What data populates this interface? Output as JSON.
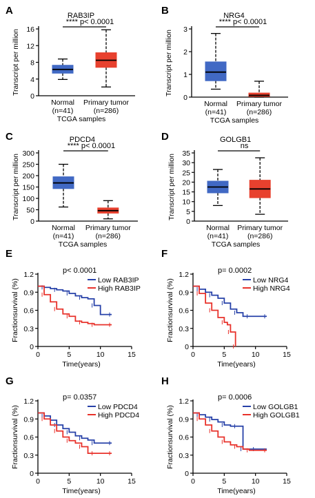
{
  "colors": {
    "normal": "#4169c4",
    "tumor": "#e8412e",
    "low": "#2640a8",
    "high": "#e8312a",
    "axis": "#000000"
  },
  "chart_data": [
    {
      "panel": "A",
      "type": "box",
      "title": "RAB3IP",
      "ylabel": "Transcript per million",
      "xlabel": "TCGA samples",
      "ylim": [
        0,
        16
      ],
      "yticks": [
        0,
        4,
        8,
        12,
        16
      ],
      "categories": [
        "Normal\n(n=41)",
        "Primary tumor\n(n=286)"
      ],
      "boxes": [
        {
          "name": "Normal",
          "n_label": "(n=41)",
          "min": 3.9,
          "q1": 5.4,
          "median": 6.3,
          "q3": 7.3,
          "max": 8.8
        },
        {
          "name": "Primary tumor",
          "n_label": "(n=286)",
          "min": 2.1,
          "q1": 6.8,
          "median": 8.5,
          "q3": 10.3,
          "max": 15.8
        }
      ],
      "annotation": "**** p< 0.0001"
    },
    {
      "panel": "B",
      "type": "box",
      "title": "NRG4",
      "ylabel": "Transcript per million",
      "xlabel": "TCGA samples",
      "ylim": [
        0,
        3
      ],
      "yticks": [
        0,
        1,
        2,
        3
      ],
      "boxes": [
        {
          "name": "Normal",
          "n_label": "(n=41)",
          "min": 0.35,
          "q1": 0.72,
          "median": 1.1,
          "q3": 1.55,
          "max": 2.8
        },
        {
          "name": "Primary tumor",
          "n_label": "(n=286)",
          "min": 0.0,
          "q1": 0.03,
          "median": 0.08,
          "q3": 0.18,
          "max": 0.7
        }
      ],
      "annotation": "**** p< 0.0001"
    },
    {
      "panel": "C",
      "type": "box",
      "title": "PDCD4",
      "ylabel": "Transcript per million",
      "xlabel": "TCGA samples",
      "ylim": [
        0,
        300
      ],
      "yticks": [
        0,
        50,
        100,
        150,
        200,
        250,
        300
      ],
      "boxes": [
        {
          "name": "Normal",
          "n_label": "(n=41)",
          "min": 62,
          "q1": 143,
          "median": 168,
          "q3": 195,
          "max": 250
        },
        {
          "name": "Primary tumor",
          "n_label": "(n=286)",
          "min": 10,
          "q1": 35,
          "median": 46,
          "q3": 58,
          "max": 90
        }
      ],
      "annotation": "**** p< 0.0001"
    },
    {
      "panel": "D",
      "type": "box",
      "title": "GOLGB1",
      "ylabel": "Transcript per million",
      "xlabel": "TCGA samples",
      "ylim": [
        0,
        35
      ],
      "yticks": [
        0,
        5,
        10,
        15,
        20,
        25,
        30,
        35
      ],
      "boxes": [
        {
          "name": "Normal",
          "n_label": "(n=41)",
          "min": 8,
          "q1": 14.5,
          "median": 17.5,
          "q3": 20.5,
          "max": 26.5
        },
        {
          "name": "Primary tumor",
          "n_label": "(n=286)",
          "min": 3.5,
          "q1": 12,
          "median": 16.5,
          "q3": 21,
          "max": 32.5
        }
      ],
      "annotation": "ns"
    },
    {
      "panel": "E",
      "type": "line",
      "subtype": "kaplan-meier",
      "ylabel": "Fractionsurvival (%)",
      "xlabel": "Time(years)",
      "xlim": [
        0,
        15
      ],
      "ylim": [
        0,
        1.2
      ],
      "xticks": [
        0,
        5,
        10,
        15
      ],
      "yticks": [
        0,
        0.3,
        0.6,
        0.9,
        1.2
      ],
      "pvalue": "p< 0.0001",
      "legend_position": "top-right",
      "series": [
        {
          "name": "Low RAB3IP",
          "x": [
            0,
            1,
            2,
            3,
            4,
            5,
            6,
            7,
            8,
            9,
            10,
            11.8
          ],
          "y": [
            1.0,
            0.98,
            0.96,
            0.94,
            0.92,
            0.88,
            0.84,
            0.81,
            0.79,
            0.68,
            0.53,
            0.53
          ]
        },
        {
          "name": "High RAB3IP",
          "x": [
            0,
            1,
            2,
            3,
            4,
            5,
            6,
            7,
            8,
            9,
            10,
            11.8
          ],
          "y": [
            1.0,
            0.86,
            0.74,
            0.62,
            0.54,
            0.5,
            0.42,
            0.4,
            0.38,
            0.36,
            0.36,
            0.36
          ]
        }
      ]
    },
    {
      "panel": "F",
      "type": "line",
      "subtype": "kaplan-meier",
      "ylabel": "Fractionsurvival (%)",
      "xlabel": "Time(years)",
      "xlim": [
        0,
        15
      ],
      "ylim": [
        0,
        1.2
      ],
      "xticks": [
        0,
        5,
        10,
        15
      ],
      "yticks": [
        0,
        0.3,
        0.6,
        0.9,
        1.2
      ],
      "pvalue": "p= 0.0002",
      "legend_position": "top-right",
      "series": [
        {
          "name": "Low NRG4",
          "x": [
            0,
            1,
            2,
            3,
            4,
            5,
            6,
            7,
            8,
            9,
            10,
            11.8
          ],
          "y": [
            1.0,
            0.95,
            0.9,
            0.85,
            0.8,
            0.72,
            0.62,
            0.56,
            0.5,
            0.5,
            0.5,
            0.5
          ]
        },
        {
          "name": "High NRG4",
          "x": [
            0,
            1,
            2,
            3,
            4,
            5,
            5.5,
            6,
            6.8,
            6.8
          ],
          "y": [
            1.0,
            0.88,
            0.72,
            0.6,
            0.48,
            0.4,
            0.36,
            0.24,
            0.24,
            0.0
          ]
        }
      ]
    },
    {
      "panel": "G",
      "type": "line",
      "subtype": "kaplan-meier",
      "ylabel": "Fractionsurvival (%)",
      "xlabel": "Time(years)",
      "xlim": [
        0,
        15
      ],
      "ylim": [
        0,
        1.2
      ],
      "xticks": [
        0,
        5,
        10,
        15
      ],
      "yticks": [
        0,
        0.3,
        0.6,
        0.9,
        1.2
      ],
      "pvalue": "p= 0.0357",
      "legend_position": "top-right",
      "series": [
        {
          "name": "Low PDCD4",
          "x": [
            0,
            1,
            2,
            3,
            4,
            5,
            6,
            7,
            8,
            9,
            10,
            11.8
          ],
          "y": [
            1.0,
            0.95,
            0.88,
            0.8,
            0.74,
            0.68,
            0.62,
            0.58,
            0.55,
            0.5,
            0.5,
            0.5
          ]
        },
        {
          "name": "High PDCD4",
          "x": [
            0,
            1,
            2,
            3,
            4,
            5,
            6,
            7,
            8,
            9,
            10,
            11.8
          ],
          "y": [
            1.0,
            0.9,
            0.8,
            0.7,
            0.6,
            0.54,
            0.5,
            0.44,
            0.33,
            0.33,
            0.33,
            0.33
          ]
        }
      ]
    },
    {
      "panel": "H",
      "type": "line",
      "subtype": "kaplan-meier",
      "ylabel": "Fractionsurvival (%)",
      "xlabel": "Time(years)",
      "xlim": [
        0,
        15
      ],
      "ylim": [
        0,
        1.2
      ],
      "xticks": [
        0,
        5,
        10,
        15
      ],
      "yticks": [
        0,
        0.3,
        0.6,
        0.9,
        1.2
      ],
      "pvalue": "p= 0.0006",
      "legend_position": "top-right",
      "series": [
        {
          "name": "Low GOLGB1",
          "x": [
            0,
            1,
            2,
            3,
            4,
            5,
            6,
            7,
            7.8,
            8,
            9,
            10,
            11.8
          ],
          "y": [
            1.0,
            0.97,
            0.93,
            0.89,
            0.85,
            0.8,
            0.78,
            0.78,
            0.78,
            0.4,
            0.4,
            0.4,
            0.4
          ]
        },
        {
          "name": "High GOLGB1",
          "x": [
            0,
            1,
            2,
            3,
            4,
            5,
            6,
            7,
            8,
            9,
            10,
            11.8
          ],
          "y": [
            1.0,
            0.9,
            0.8,
            0.7,
            0.6,
            0.52,
            0.47,
            0.44,
            0.4,
            0.38,
            0.38,
            0.38
          ]
        }
      ]
    }
  ]
}
